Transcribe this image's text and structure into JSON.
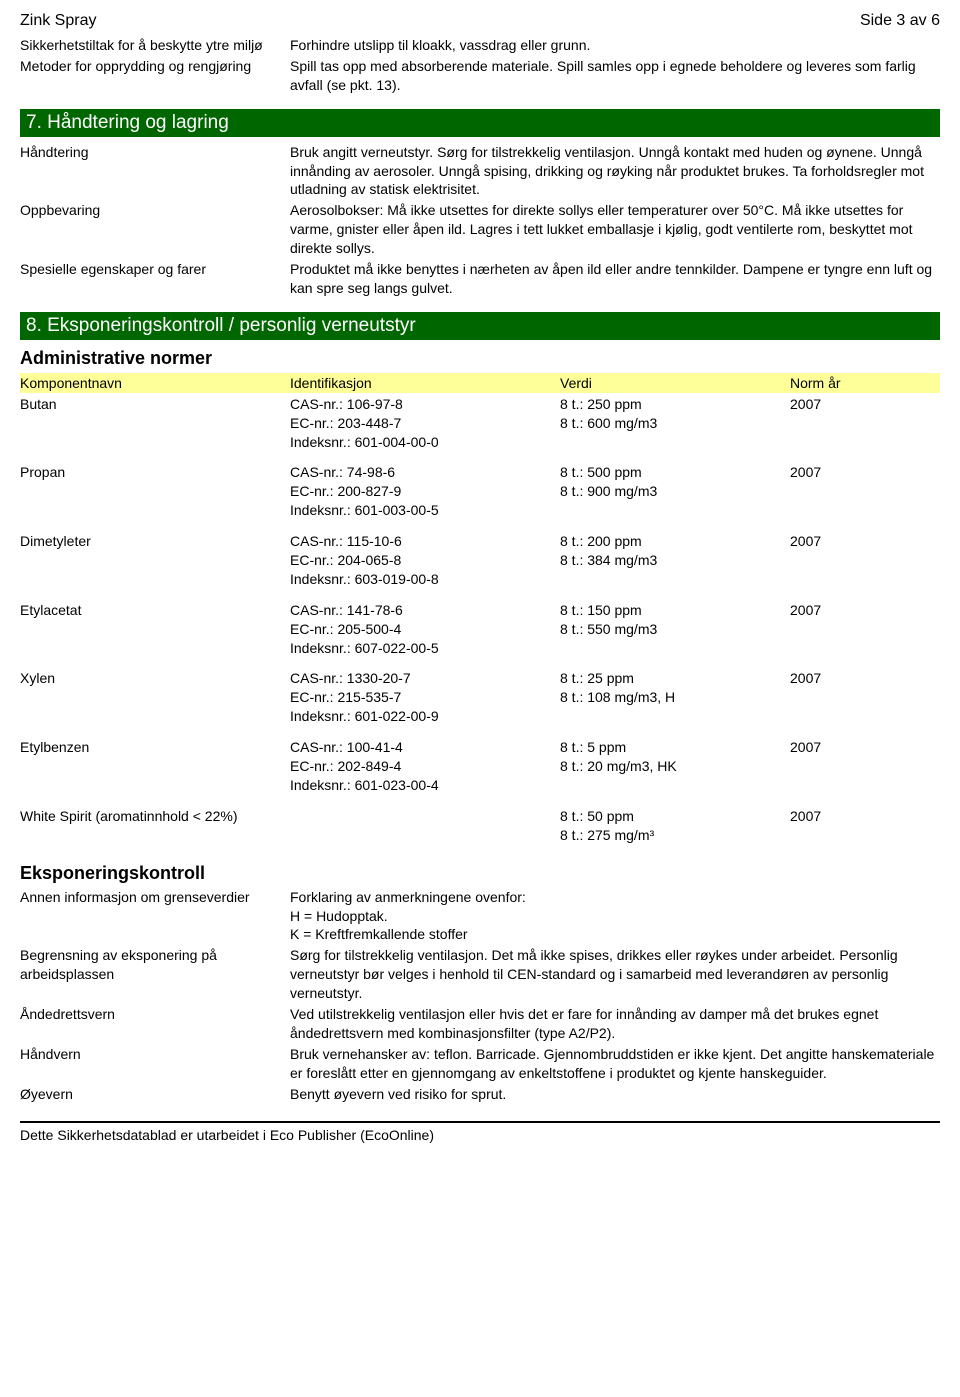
{
  "header": {
    "title": "Zink Spray",
    "page": "Side 3 av 6"
  },
  "topRows": [
    {
      "key": "Sikkerhetstiltak for å beskytte ytre miljø",
      "val": "Forhindre utslipp til kloakk, vassdrag eller grunn."
    },
    {
      "key": "Metoder for opprydding og rengjøring",
      "val": "Spill tas opp med absorberende materiale. Spill samles opp i egnede beholdere og leveres som farlig avfall (se pkt. 13)."
    }
  ],
  "section7": {
    "title": "7. Håndtering og lagring",
    "rows": [
      {
        "key": "Håndtering",
        "val": "Bruk angitt verneutstyr. Sørg for tilstrekkelig ventilasjon. Unngå kontakt med huden og øynene. Unngå innånding av aerosoler. Unngå spising, drikking og røyking når produktet brukes. Ta forholdsregler mot utladning av statisk elektrisitet."
      },
      {
        "key": "Oppbevaring",
        "val": "Aerosolbokser: Må ikke utsettes for direkte sollys eller temperaturer over 50°C. Må ikke utsettes for varme, gnister eller åpen ild. Lagres i tett lukket emballasje i kjølig, godt ventilerte rom, beskyttet mot direkte sollys."
      },
      {
        "key": "Spesielle egenskaper og farer",
        "val": "Produktet må ikke benyttes i nærheten av åpen ild eller andre tennkilder. Dampene er tyngre enn luft og kan spre seg langs gulvet."
      }
    ]
  },
  "section8": {
    "title": "8. Eksponeringskontroll / personlig verneutstyr",
    "adminTitle": "Administrative normer",
    "colHeaders": {
      "name": "Komponentnavn",
      "id": "Identifikasjon",
      "val": "Verdi",
      "year": "Norm år"
    },
    "components": [
      {
        "name": "Butan",
        "id": "CAS-nr.: 106-97-8\nEC-nr.: 203-448-7\nIndeksnr.: 601-004-00-0",
        "val": "8 t.: 250 ppm\n8 t.: 600 mg/m3",
        "year": "2007"
      },
      {
        "name": "Propan",
        "id": "CAS-nr.: 74-98-6\nEC-nr.: 200-827-9\nIndeksnr.: 601-003-00-5",
        "val": "8 t.: 500 ppm\n8 t.: 900 mg/m3",
        "year": "2007"
      },
      {
        "name": "Dimetyleter",
        "id": "CAS-nr.: 115-10-6\nEC-nr.: 204-065-8\nIndeksnr.: 603-019-00-8",
        "val": "8 t.: 200 ppm\n8 t.: 384 mg/m3",
        "year": "2007"
      },
      {
        "name": "Etylacetat",
        "id": "CAS-nr.: 141-78-6\nEC-nr.: 205-500-4\nIndeksnr.: 607-022-00-5",
        "val": "8 t.: 150 ppm\n8 t.: 550 mg/m3",
        "year": "2007"
      },
      {
        "name": "Xylen",
        "id": "CAS-nr.: 1330-20-7\nEC-nr.: 215-535-7\nIndeksnr.: 601-022-00-9",
        "val": "8 t.: 25 ppm\n8 t.: 108 mg/m3, H",
        "year": "2007"
      },
      {
        "name": "Etylbenzen",
        "id": "CAS-nr.: 100-41-4\nEC-nr.: 202-849-4\nIndeksnr.: 601-023-00-4",
        "val": "8 t.: 5 ppm\n8 t.: 20 mg/m3, HK",
        "year": "2007"
      },
      {
        "name": "White Spirit (aromatinnhold < 22%)",
        "id": "",
        "val": "8 t.: 50 ppm\n8 t.: 275 mg/m³",
        "year": "2007"
      }
    ],
    "expTitle": "Eksponeringskontroll",
    "expRows": [
      {
        "key": "Annen informasjon om grenseverdier",
        "val": "Forklaring av anmerkningene ovenfor:\nH = Hudopptak.\nK = Kreftfremkallende stoffer"
      },
      {
        "key": "Begrensning av eksponering på arbeidsplassen",
        "val": "Sørg for tilstrekkelig ventilasjon. Det må ikke spises, drikkes eller røykes under arbeidet. Personlig verneutstyr bør velges i henhold til CEN-standard og i samarbeid med leverandøren av personlig verneutstyr."
      },
      {
        "key": "Åndedrettsvern",
        "val": "Ved utilstrekkelig ventilasjon eller hvis det er fare for innånding av damper må det brukes egnet åndedrettsvern med kombinasjonsfilter (type A2/P2)."
      },
      {
        "key": "Håndvern",
        "val": "Bruk vernehansker av: teflon. Barricade. Gjennombruddstiden er ikke kjent. Det angitte hanskemateriale er foreslått etter en gjennomgang av enkeltstoffene i produktet og kjente hanskeguider."
      },
      {
        "key": "Øyevern",
        "val": "Benytt øyevern ved risiko for sprut."
      }
    ]
  },
  "footer": "Dette Sikkerhetsdatablad er utarbeidet i Eco Publisher (EcoOnline)"
}
